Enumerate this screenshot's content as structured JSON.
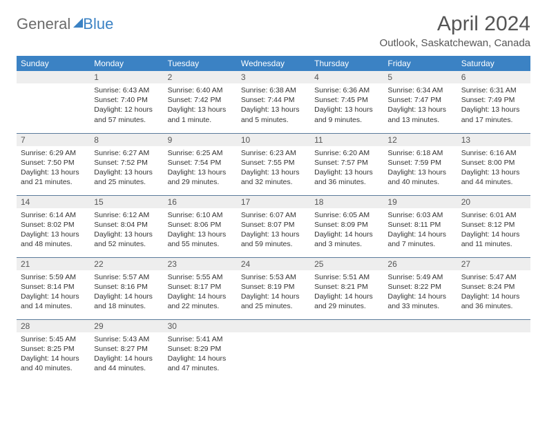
{
  "brand": {
    "word1": "General",
    "word2": "Blue"
  },
  "title": "April 2024",
  "location": "Outlook, Saskatchewan, Canada",
  "dow": [
    "Sunday",
    "Monday",
    "Tuesday",
    "Wednesday",
    "Thursday",
    "Friday",
    "Saturday"
  ],
  "colors": {
    "header_bg": "#3b82c4",
    "header_text": "#ffffff",
    "daynum_bg": "#eeeeee",
    "border": "#5a7a9a",
    "title_color": "#555555",
    "body_text": "#333333"
  },
  "weeks": [
    [
      {
        "n": "",
        "sr": "",
        "ss": "",
        "dl": ""
      },
      {
        "n": "1",
        "sr": "Sunrise: 6:43 AM",
        "ss": "Sunset: 7:40 PM",
        "dl": "Daylight: 12 hours and 57 minutes."
      },
      {
        "n": "2",
        "sr": "Sunrise: 6:40 AM",
        "ss": "Sunset: 7:42 PM",
        "dl": "Daylight: 13 hours and 1 minute."
      },
      {
        "n": "3",
        "sr": "Sunrise: 6:38 AM",
        "ss": "Sunset: 7:44 PM",
        "dl": "Daylight: 13 hours and 5 minutes."
      },
      {
        "n": "4",
        "sr": "Sunrise: 6:36 AM",
        "ss": "Sunset: 7:45 PM",
        "dl": "Daylight: 13 hours and 9 minutes."
      },
      {
        "n": "5",
        "sr": "Sunrise: 6:34 AM",
        "ss": "Sunset: 7:47 PM",
        "dl": "Daylight: 13 hours and 13 minutes."
      },
      {
        "n": "6",
        "sr": "Sunrise: 6:31 AM",
        "ss": "Sunset: 7:49 PM",
        "dl": "Daylight: 13 hours and 17 minutes."
      }
    ],
    [
      {
        "n": "7",
        "sr": "Sunrise: 6:29 AM",
        "ss": "Sunset: 7:50 PM",
        "dl": "Daylight: 13 hours and 21 minutes."
      },
      {
        "n": "8",
        "sr": "Sunrise: 6:27 AM",
        "ss": "Sunset: 7:52 PM",
        "dl": "Daylight: 13 hours and 25 minutes."
      },
      {
        "n": "9",
        "sr": "Sunrise: 6:25 AM",
        "ss": "Sunset: 7:54 PM",
        "dl": "Daylight: 13 hours and 29 minutes."
      },
      {
        "n": "10",
        "sr": "Sunrise: 6:23 AM",
        "ss": "Sunset: 7:55 PM",
        "dl": "Daylight: 13 hours and 32 minutes."
      },
      {
        "n": "11",
        "sr": "Sunrise: 6:20 AM",
        "ss": "Sunset: 7:57 PM",
        "dl": "Daylight: 13 hours and 36 minutes."
      },
      {
        "n": "12",
        "sr": "Sunrise: 6:18 AM",
        "ss": "Sunset: 7:59 PM",
        "dl": "Daylight: 13 hours and 40 minutes."
      },
      {
        "n": "13",
        "sr": "Sunrise: 6:16 AM",
        "ss": "Sunset: 8:00 PM",
        "dl": "Daylight: 13 hours and 44 minutes."
      }
    ],
    [
      {
        "n": "14",
        "sr": "Sunrise: 6:14 AM",
        "ss": "Sunset: 8:02 PM",
        "dl": "Daylight: 13 hours and 48 minutes."
      },
      {
        "n": "15",
        "sr": "Sunrise: 6:12 AM",
        "ss": "Sunset: 8:04 PM",
        "dl": "Daylight: 13 hours and 52 minutes."
      },
      {
        "n": "16",
        "sr": "Sunrise: 6:10 AM",
        "ss": "Sunset: 8:06 PM",
        "dl": "Daylight: 13 hours and 55 minutes."
      },
      {
        "n": "17",
        "sr": "Sunrise: 6:07 AM",
        "ss": "Sunset: 8:07 PM",
        "dl": "Daylight: 13 hours and 59 minutes."
      },
      {
        "n": "18",
        "sr": "Sunrise: 6:05 AM",
        "ss": "Sunset: 8:09 PM",
        "dl": "Daylight: 14 hours and 3 minutes."
      },
      {
        "n": "19",
        "sr": "Sunrise: 6:03 AM",
        "ss": "Sunset: 8:11 PM",
        "dl": "Daylight: 14 hours and 7 minutes."
      },
      {
        "n": "20",
        "sr": "Sunrise: 6:01 AM",
        "ss": "Sunset: 8:12 PM",
        "dl": "Daylight: 14 hours and 11 minutes."
      }
    ],
    [
      {
        "n": "21",
        "sr": "Sunrise: 5:59 AM",
        "ss": "Sunset: 8:14 PM",
        "dl": "Daylight: 14 hours and 14 minutes."
      },
      {
        "n": "22",
        "sr": "Sunrise: 5:57 AM",
        "ss": "Sunset: 8:16 PM",
        "dl": "Daylight: 14 hours and 18 minutes."
      },
      {
        "n": "23",
        "sr": "Sunrise: 5:55 AM",
        "ss": "Sunset: 8:17 PM",
        "dl": "Daylight: 14 hours and 22 minutes."
      },
      {
        "n": "24",
        "sr": "Sunrise: 5:53 AM",
        "ss": "Sunset: 8:19 PM",
        "dl": "Daylight: 14 hours and 25 minutes."
      },
      {
        "n": "25",
        "sr": "Sunrise: 5:51 AM",
        "ss": "Sunset: 8:21 PM",
        "dl": "Daylight: 14 hours and 29 minutes."
      },
      {
        "n": "26",
        "sr": "Sunrise: 5:49 AM",
        "ss": "Sunset: 8:22 PM",
        "dl": "Daylight: 14 hours and 33 minutes."
      },
      {
        "n": "27",
        "sr": "Sunrise: 5:47 AM",
        "ss": "Sunset: 8:24 PM",
        "dl": "Daylight: 14 hours and 36 minutes."
      }
    ],
    [
      {
        "n": "28",
        "sr": "Sunrise: 5:45 AM",
        "ss": "Sunset: 8:25 PM",
        "dl": "Daylight: 14 hours and 40 minutes."
      },
      {
        "n": "29",
        "sr": "Sunrise: 5:43 AM",
        "ss": "Sunset: 8:27 PM",
        "dl": "Daylight: 14 hours and 44 minutes."
      },
      {
        "n": "30",
        "sr": "Sunrise: 5:41 AM",
        "ss": "Sunset: 8:29 PM",
        "dl": "Daylight: 14 hours and 47 minutes."
      },
      {
        "n": "",
        "sr": "",
        "ss": "",
        "dl": ""
      },
      {
        "n": "",
        "sr": "",
        "ss": "",
        "dl": ""
      },
      {
        "n": "",
        "sr": "",
        "ss": "",
        "dl": ""
      },
      {
        "n": "",
        "sr": "",
        "ss": "",
        "dl": ""
      }
    ]
  ]
}
